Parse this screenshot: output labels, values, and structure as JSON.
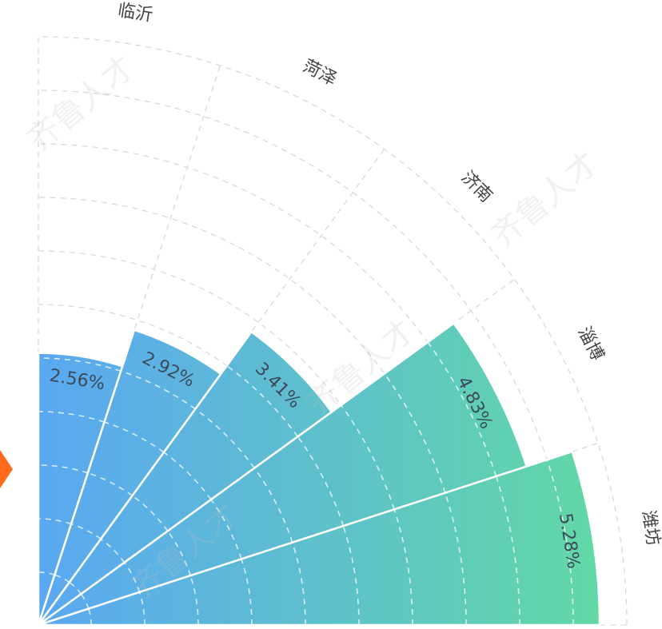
{
  "chart_data": {
    "type": "polar-bar",
    "categories": [
      "临沂",
      "菏泽",
      "济南",
      "淄博",
      "潍坊"
    ],
    "values": [
      2.56,
      2.92,
      3.41,
      4.83,
      5.28
    ],
    "value_labels": [
      "2.56%",
      "2.92%",
      "3.41%",
      "4.83%",
      "5.28%"
    ],
    "unit": "%",
    "title": "",
    "radial_range": [
      0,
      5.28
    ],
    "angular_range_deg": [
      0,
      90
    ],
    "grid": true,
    "colors": {
      "start": "#5aa8f2",
      "end": "#62d8a6",
      "grid": "#d9d9d9"
    }
  },
  "watermark": "齐鲁人才"
}
